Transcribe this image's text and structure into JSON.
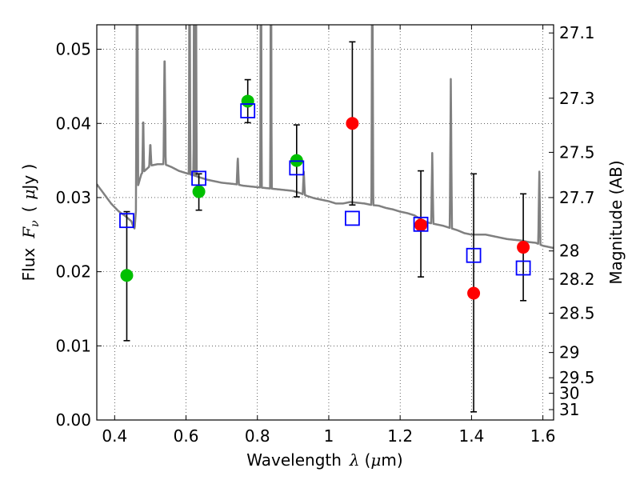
{
  "chart_data": {
    "type": "scatter",
    "xlabel_text": "Wavelength",
    "xlabel_symbol": "λ",
    "xlabel_unit_open": "(",
    "xlabel_unit_mu": "μ",
    "xlabel_unit_rest": "m)",
    "ylabel_text": "Flux",
    "ylabel_symbol_F": "F",
    "ylabel_symbol_sub": "ν",
    "ylabel_unit_open": "(",
    "ylabel_unit_mu": "μ",
    "ylabel_unit_rest": "Jy )",
    "y2label": "Magnitude (AB)",
    "xlim": [
      0.35,
      1.63
    ],
    "ylim": [
      0.0,
      0.0533
    ],
    "grid": true,
    "x_ticks": [
      0.4,
      0.6,
      0.8,
      1.0,
      1.2,
      1.4,
      1.6
    ],
    "x_tick_labels": [
      "0.4",
      "0.6",
      "0.8",
      "1",
      "1.2",
      "1.4",
      "1.6"
    ],
    "y_ticks": [
      0.0,
      0.01,
      0.02,
      0.03,
      0.04,
      0.05
    ],
    "y_tick_labels": [
      "0.00",
      "0.01",
      "0.02",
      "0.03",
      "0.04",
      "0.05"
    ],
    "y2_ticks": [
      {
        "label": "27.1",
        "flux": 0.0522
      },
      {
        "label": "27.3",
        "flux": 0.0434
      },
      {
        "label": "27.5",
        "flux": 0.0361
      },
      {
        "label": "27.7",
        "flux": 0.03
      },
      {
        "label": "28",
        "flux": 0.0228
      },
      {
        "label": "28.2",
        "flux": 0.019
      },
      {
        "label": "28.5",
        "flux": 0.0144
      },
      {
        "label": "29",
        "flux": 0.0091
      },
      {
        "label": "29.5",
        "flux": 0.0057
      },
      {
        "label": "30",
        "flux": 0.0036
      },
      {
        "label": "31",
        "flux": 0.0014
      }
    ],
    "series": [
      {
        "marker": "filled-circle",
        "color": "#00c000",
        "points": [
          {
            "x": 0.434,
            "y": 0.0195,
            "err_low": 0.0107,
            "err_high": 0.0281
          },
          {
            "x": 0.636,
            "y": 0.0308,
            "err_low": 0.0283,
            "err_high": 0.0332
          },
          {
            "x": 0.773,
            "y": 0.043,
            "err_low": 0.0401,
            "err_high": 0.0459
          },
          {
            "x": 0.91,
            "y": 0.035,
            "err_low": 0.0301,
            "err_high": 0.0398
          }
        ]
      },
      {
        "marker": "filled-circle",
        "color": "#ff0000",
        "points": [
          {
            "x": 1.066,
            "y": 0.04,
            "err_low": 0.029,
            "err_high": 0.051
          },
          {
            "x": 1.258,
            "y": 0.0263,
            "err_low": 0.0193,
            "err_high": 0.0336
          },
          {
            "x": 1.406,
            "y": 0.0171,
            "err_low": 0.0011,
            "err_high": 0.0332
          },
          {
            "x": 1.545,
            "y": 0.0233,
            "err_low": 0.0161,
            "err_high": 0.0305
          }
        ]
      },
      {
        "marker": "open-square",
        "color": "#0000ff",
        "points": [
          {
            "x": 0.434,
            "y": 0.0269
          },
          {
            "x": 0.636,
            "y": 0.0326
          },
          {
            "x": 0.773,
            "y": 0.0417
          },
          {
            "x": 0.91,
            "y": 0.034
          },
          {
            "x": 1.066,
            "y": 0.0272
          },
          {
            "x": 1.258,
            "y": 0.0264
          },
          {
            "x": 1.406,
            "y": 0.0222
          },
          {
            "x": 1.545,
            "y": 0.0205
          }
        ]
      }
    ],
    "model_spectrum": {
      "color": "#808080",
      "continuum": [
        [
          0.35,
          0.0318
        ],
        [
          0.37,
          0.0305
        ],
        [
          0.39,
          0.0292
        ],
        [
          0.41,
          0.0282
        ],
        [
          0.43,
          0.0275
        ],
        [
          0.447,
          0.0268
        ],
        [
          0.452,
          0.0261
        ],
        [
          0.456,
          0.0258
        ],
        [
          0.459,
          0.0278
        ],
        [
          0.465,
          0.0315
        ],
        [
          0.475,
          0.0332
        ],
        [
          0.5,
          0.0343
        ],
        [
          0.52,
          0.0345
        ],
        [
          0.54,
          0.0345
        ],
        [
          0.56,
          0.0341
        ],
        [
          0.58,
          0.0336
        ],
        [
          0.6,
          0.0333
        ],
        [
          0.62,
          0.033
        ],
        [
          0.64,
          0.0327
        ],
        [
          0.66,
          0.0324
        ],
        [
          0.68,
          0.0322
        ],
        [
          0.7,
          0.032
        ],
        [
          0.72,
          0.0319
        ],
        [
          0.74,
          0.0318
        ],
        [
          0.76,
          0.0316
        ],
        [
          0.78,
          0.0315
        ],
        [
          0.8,
          0.0314
        ],
        [
          0.82,
          0.0313
        ],
        [
          0.84,
          0.0312
        ],
        [
          0.86,
          0.0311
        ],
        [
          0.88,
          0.031
        ],
        [
          0.9,
          0.0309
        ],
        [
          0.92,
          0.0306
        ],
        [
          0.94,
          0.0302
        ],
        [
          0.96,
          0.0299
        ],
        [
          0.98,
          0.0297
        ],
        [
          1.0,
          0.0295
        ],
        [
          1.02,
          0.0292
        ],
        [
          1.04,
          0.0292
        ],
        [
          1.06,
          0.0294
        ],
        [
          1.08,
          0.0293
        ],
        [
          1.1,
          0.0292
        ],
        [
          1.12,
          0.029
        ],
        [
          1.14,
          0.0289
        ],
        [
          1.16,
          0.0286
        ],
        [
          1.18,
          0.0284
        ],
        [
          1.2,
          0.0281
        ],
        [
          1.22,
          0.0279
        ],
        [
          1.24,
          0.0276
        ],
        [
          1.26,
          0.027
        ],
        [
          1.28,
          0.0266
        ],
        [
          1.3,
          0.0264
        ],
        [
          1.32,
          0.0262
        ],
        [
          1.34,
          0.0259
        ],
        [
          1.36,
          0.0256
        ],
        [
          1.38,
          0.0252
        ],
        [
          1.4,
          0.025
        ],
        [
          1.42,
          0.025
        ],
        [
          1.44,
          0.025
        ],
        [
          1.46,
          0.0248
        ],
        [
          1.48,
          0.0246
        ],
        [
          1.5,
          0.0244
        ],
        [
          1.52,
          0.0243
        ],
        [
          1.54,
          0.0242
        ],
        [
          1.56,
          0.024
        ],
        [
          1.58,
          0.0239
        ],
        [
          1.6,
          0.0235
        ],
        [
          1.63,
          0.0232
        ]
      ],
      "lines": [
        {
          "center": 0.463,
          "width": 0.006,
          "peak": 0.07
        },
        {
          "center": 0.48,
          "width": 0.005,
          "peak": 0.0414
        },
        {
          "center": 0.5,
          "width": 0.006,
          "peak": 0.0375
        },
        {
          "center": 0.54,
          "width": 0.006,
          "peak": 0.0505
        },
        {
          "center": 0.61,
          "width": 0.004,
          "peak": 0.07
        },
        {
          "center": 0.623,
          "width": 0.004,
          "peak": 0.07
        },
        {
          "center": 0.628,
          "width": 0.004,
          "peak": 0.06
        },
        {
          "center": 0.745,
          "width": 0.006,
          "peak": 0.0355
        },
        {
          "center": 0.81,
          "width": 0.004,
          "peak": 0.07
        },
        {
          "center": 0.838,
          "width": 0.004,
          "peak": 0.07
        },
        {
          "center": 0.93,
          "width": 0.006,
          "peak": 0.0335
        },
        {
          "center": 1.122,
          "width": 0.005,
          "peak": 0.07
        },
        {
          "center": 1.29,
          "width": 0.006,
          "peak": 0.036
        },
        {
          "center": 1.342,
          "width": 0.006,
          "peak": 0.046
        },
        {
          "center": 1.59,
          "width": 0.006,
          "peak": 0.0335
        }
      ]
    }
  }
}
